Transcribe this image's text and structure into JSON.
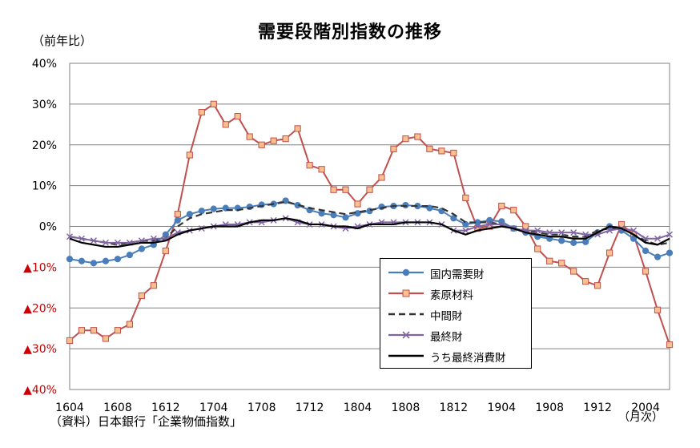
{
  "chart_data": {
    "type": "line",
    "title": "需要段階別指数の推移",
    "ylabel": "（前年比）",
    "xlabel": "（月次）",
    "source": "（資料）日本銀行「企業物価指数」",
    "ylim": [
      -40,
      40
    ],
    "yticks": [
      {
        "value": 40,
        "label": "40%"
      },
      {
        "value": 30,
        "label": "30%"
      },
      {
        "value": 20,
        "label": "20%"
      },
      {
        "value": 10,
        "label": "10%"
      },
      {
        "value": 0,
        "label": "0%"
      },
      {
        "value": -10,
        "label": "▲10%"
      },
      {
        "value": -20,
        "label": "▲20%"
      },
      {
        "value": -30,
        "label": "▲30%"
      },
      {
        "value": -40,
        "label": "▲40%"
      }
    ],
    "grid": true,
    "legend_position": "lower-right",
    "x": [
      "1604",
      "1605",
      "1606",
      "1607",
      "1608",
      "1609",
      "1610",
      "1611",
      "1612",
      "1701",
      "1702",
      "1703",
      "1704",
      "1705",
      "1706",
      "1707",
      "1708",
      "1709",
      "1710",
      "1711",
      "1712",
      "1801",
      "1802",
      "1803",
      "1804",
      "1805",
      "1806",
      "1807",
      "1808",
      "1809",
      "1810",
      "1811",
      "1812",
      "1901",
      "1902",
      "1903",
      "1904",
      "1905",
      "1906",
      "1907",
      "1908",
      "1909",
      "1910",
      "1911",
      "1912",
      "2001",
      "2002",
      "2003",
      "2004",
      "2005",
      "2006"
    ],
    "xtick_labels": [
      "1604",
      "1608",
      "1612",
      "1704",
      "1708",
      "1712",
      "1804",
      "1808",
      "1812",
      "1904",
      "1908",
      "1912",
      "2004"
    ],
    "series": [
      {
        "name": "国内需要財",
        "color": "#4a7ebb",
        "marker": "circle",
        "dash": "none",
        "values": [
          -8,
          -8.5,
          -9,
          -8.5,
          -8,
          -7,
          -5.5,
          -4.5,
          -2,
          1.5,
          3,
          3.8,
          4.3,
          4.5,
          4.5,
          4.8,
          5.3,
          5.5,
          6.3,
          5.2,
          4,
          3.2,
          2.8,
          2.2,
          3.2,
          3.8,
          4.8,
          5,
          5.2,
          5,
          4.5,
          3.8,
          2,
          0.5,
          1,
          1.5,
          1.2,
          -0.5,
          -1.5,
          -2.5,
          -3,
          -3.5,
          -4,
          -3.8,
          -1.5,
          0,
          -1,
          -3,
          -6,
          -7.5,
          -6.5
        ]
      },
      {
        "name": "素原材料",
        "color": "#c0504d",
        "markerFill": "#fac090",
        "marker": "square",
        "dash": "none",
        "values": [
          -28,
          -25.5,
          -25.5,
          -27.5,
          -25.5,
          -24,
          -17,
          -14.5,
          -6,
          3,
          17.5,
          28,
          30,
          25,
          27,
          22,
          20,
          21,
          21.5,
          24,
          15,
          14,
          9,
          9,
          5.5,
          9,
          12,
          19,
          21.5,
          22,
          19,
          18.5,
          18,
          7,
          -0.5,
          0,
          5,
          4,
          0,
          -5.5,
          -8.5,
          -9,
          -11,
          -13.5,
          -14.5,
          -6.5,
          0.5,
          -2,
          -11,
          -20.5,
          -29
        ]
      },
      {
        "name": "中間財",
        "color": "#333333",
        "marker": "none",
        "dash": "8,5",
        "values": [
          -2.5,
          -3,
          -3.5,
          -4,
          -4.5,
          -4,
          -3.5,
          -3.5,
          -3,
          0,
          2,
          3,
          3.5,
          4,
          4,
          4.5,
          5,
          5.5,
          6,
          5.3,
          4.5,
          4,
          3.5,
          3,
          3.5,
          4,
          4.5,
          5,
          5,
          5,
          5,
          4.5,
          3,
          1,
          1,
          1,
          0.5,
          -0.5,
          -1,
          -1.5,
          -2,
          -2,
          -2.5,
          -2.5,
          -1,
          -0.5,
          -0.5,
          -2,
          -3.5,
          -4.5,
          -4
        ]
      },
      {
        "name": "最終財",
        "color": "#8064a2",
        "marker": "cross",
        "dash": "none",
        "values": [
          -2.5,
          -3,
          -3.5,
          -4,
          -4,
          -4,
          -3.5,
          -3,
          -3,
          -1.5,
          -1,
          -0.5,
          0,
          0.5,
          0.5,
          1,
          1,
          1.5,
          2,
          1,
          0.5,
          0.5,
          0,
          -0.5,
          0,
          0.5,
          1,
          1,
          1,
          1,
          1,
          0.5,
          -1,
          -1,
          0,
          0.5,
          0.5,
          -0.5,
          -1,
          -1,
          -1.5,
          -1.5,
          -1.5,
          -2,
          -2,
          -1,
          -0.5,
          -1,
          -3,
          -3,
          -2
        ]
      },
      {
        "name": "うち最終消費財",
        "color": "#000000",
        "marker": "none",
        "dash": "none",
        "values": [
          -3,
          -4,
          -4.5,
          -5,
          -5,
          -4.5,
          -4,
          -4,
          -3.5,
          -2,
          -1,
          -0.5,
          0,
          0,
          0,
          1,
          1.5,
          1.5,
          2,
          1.5,
          0.5,
          0.5,
          0,
          0,
          -0.5,
          0.5,
          0.5,
          0.5,
          1,
          1,
          1,
          0.5,
          -1,
          -2,
          -1,
          -0.5,
          0,
          -0.5,
          -1.5,
          -2,
          -2.5,
          -2.5,
          -3,
          -3,
          -1.5,
          0,
          -0.5,
          -2,
          -4,
          -4.5,
          -3
        ]
      }
    ]
  }
}
